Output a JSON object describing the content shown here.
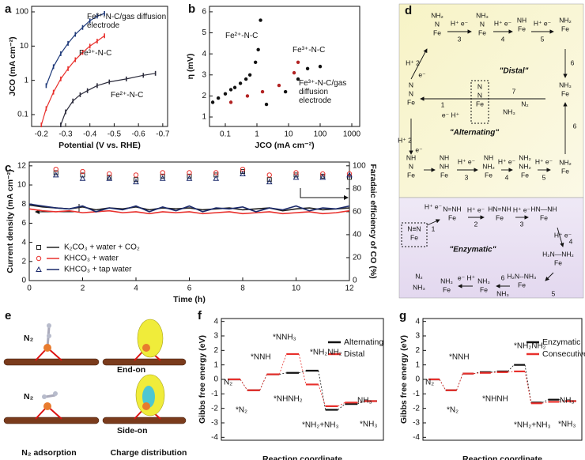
{
  "chart_data": [
    {
      "type": "line",
      "xlabel": "Potential (V vs. RHE)",
      "ylabel": "JCO (mA cm⁻²)",
      "xlim": [
        -0.16,
        -0.72
      ],
      "ylim": [
        0.045,
        145
      ],
      "ylog": true,
      "xticks": [
        -0.2,
        -0.3,
        -0.4,
        -0.5,
        -0.6,
        -0.7
      ],
      "yticks": [
        0.1,
        1,
        10,
        100
      ],
      "series": [
        {
          "name": "Fe³⁺-N-C/gas diffusion electrode",
          "color": "#1f3a7a",
          "x": [
            -0.22,
            -0.25,
            -0.28,
            -0.31,
            -0.34,
            -0.37,
            -0.4,
            -0.43,
            -0.46
          ],
          "values": [
            0.7,
            2.5,
            6,
            12,
            22,
            35,
            55,
            75,
            90
          ]
        },
        {
          "name": "Fe³⁺-N-C",
          "color": "#e8302c",
          "x": [
            -0.2,
            -0.22,
            -0.25,
            -0.28,
            -0.31,
            -0.34,
            -0.37,
            -0.4,
            -0.43,
            -0.46
          ],
          "values": [
            0.05,
            0.15,
            0.45,
            1.1,
            2.2,
            4,
            6.5,
            10,
            14,
            20
          ]
        },
        {
          "name": "Fe²⁺-N-C",
          "color": "#2b2b3b",
          "x": [
            -0.28,
            -0.3,
            -0.33,
            -0.36,
            -0.39,
            -0.43,
            -0.48,
            -0.55,
            -0.62,
            -0.67
          ],
          "values": [
            0.05,
            0.12,
            0.25,
            0.38,
            0.5,
            0.7,
            0.9,
            1.1,
            1.4,
            1.6
          ]
        }
      ]
    },
    {
      "type": "scatter",
      "xlabel": "JCO (mA cm⁻²)",
      "ylabel": "η (mV)",
      "xlim": [
        0.0316,
        1778
      ],
      "xlog": true,
      "ylim": [
        0.55,
        6.26
      ],
      "xticks": [
        0.1,
        1,
        10,
        100,
        1000
      ],
      "yticks": [
        1,
        2,
        3,
        4,
        5,
        6
      ],
      "series": [
        {
          "name": "Fe²⁺-N-C",
          "color": "#111111",
          "x": [
            0.04,
            0.06,
            0.1,
            0.15,
            0.2,
            0.3,
            0.45,
            0.6,
            0.9,
            1.1,
            1.3
          ],
          "values": [
            1.7,
            1.9,
            2.1,
            2.3,
            2.4,
            2.6,
            2.8,
            3.0,
            3.6,
            4.2,
            5.6
          ]
        },
        {
          "name": "Fe³⁺-N-C",
          "color": "#b22222",
          "x": [
            0.15,
            0.5,
            1.5,
            5,
            15,
            20
          ],
          "values": [
            1.7,
            2.0,
            2.2,
            2.5,
            3.1,
            3.6
          ]
        },
        {
          "name": "Fe³⁺-N-C/gas diffusion electrode",
          "color": "#111111",
          "x": [
            2,
            8,
            20,
            40,
            100
          ],
          "values": [
            1.6,
            2.2,
            2.8,
            3.3,
            3.4
          ]
        }
      ]
    },
    {
      "type": "stability",
      "xlabel": "Time (h)",
      "ylabel": "Current density (mA cm⁻²)",
      "y2label": "Faradaic efficiency of CO (%)",
      "xlim": [
        0,
        12
      ],
      "ylim": [
        0,
        12.4
      ],
      "y2lim": [
        0,
        103.3
      ],
      "xticks": [
        0,
        2,
        4,
        6,
        8,
        10,
        12
      ],
      "yticks": [
        0,
        2,
        4,
        6,
        8,
        10,
        12
      ],
      "y2ticks": [
        0,
        20,
        40,
        60,
        80,
        100
      ],
      "x": [
        0,
        0.5,
        1,
        1.5,
        2,
        2.5,
        3,
        3.5,
        4,
        4.5,
        5,
        5.5,
        6,
        6.5,
        7,
        7.5,
        8,
        8.5,
        9,
        9.5,
        10,
        10.5,
        11,
        11.5,
        12
      ],
      "fe_x": [
        1,
        2,
        3,
        4,
        5,
        6,
        7,
        8,
        9,
        10,
        11,
        12
      ],
      "series": [
        {
          "name": "K₂CO₃ + water + CO₂",
          "color": "#222222",
          "marker": "square",
          "values": [
            7.9,
            7.7,
            7.6,
            7.5,
            7.7,
            7.4,
            7.6,
            7.5,
            7.7,
            7.4,
            7.6,
            7.5,
            7.6,
            7.4,
            7.5,
            7.6,
            7.4,
            7.5,
            7.6,
            7.3,
            7.5,
            7.6,
            7.4,
            7.5,
            7.6
          ],
          "fe_values": [
            94,
            92,
            90,
            88,
            91,
            91,
            92,
            95,
            88,
            92,
            91,
            90
          ]
        },
        {
          "name": "KHCO₃ + water",
          "color": "#e8302c",
          "marker": "circle",
          "values": [
            7.5,
            7.3,
            7.2,
            7.3,
            7.1,
            7.2,
            7.3,
            7.1,
            7.2,
            7.0,
            7.2,
            7.1,
            7.2,
            7.0,
            7.1,
            7.2,
            7.0,
            7.1,
            7.2,
            7.0,
            7.1,
            7.2,
            7.0,
            7.1,
            7.3
          ],
          "fe_values": [
            97,
            95,
            93,
            92,
            94,
            94,
            94,
            97,
            92,
            94,
            93,
            93
          ]
        },
        {
          "name": "KHCO₃ + tap water",
          "color": "#1b2a6b",
          "marker": "triangle",
          "values": [
            8.0,
            7.8,
            7.6,
            7.5,
            7.8,
            7.2,
            7.6,
            7.4,
            7.8,
            7.2,
            7.7,
            7.3,
            7.8,
            7.2,
            7.6,
            7.5,
            7.7,
            7.2,
            7.6,
            7.4,
            7.8,
            7.3,
            7.6,
            7.5,
            7.8
          ],
          "fe_values": [
            92,
            89,
            89,
            86,
            89,
            89,
            89,
            93,
            86,
            90,
            90,
            92
          ]
        }
      ]
    },
    {
      "type": "energy",
      "xlabel": "Reaction coordinate",
      "ylabel": "Gibbs free energy (eV)",
      "ylim": [
        -4.2,
        4.2
      ],
      "yticks": [
        -4,
        -3,
        -2,
        -1,
        0,
        1,
        2,
        3,
        4
      ],
      "legend": "upper right",
      "series": [
        {
          "name": "Alternating",
          "color": "#111111",
          "values": [
            0,
            -0.75,
            0.35,
            0.45,
            0.6,
            -2.1,
            -1.7,
            -1.5
          ]
        },
        {
          "name": "Distal",
          "color": "#e8302c",
          "values": [
            0,
            -0.75,
            0.35,
            1.75,
            -0.35,
            -1.85,
            -1.6,
            -1.5
          ]
        }
      ],
      "annotations": [
        "N₂",
        "*NNH",
        "*NNH₃",
        "*NH₂NH₂",
        "*N₂",
        "*NHNH₂",
        "NH₃",
        "*NH₂+NH₃",
        "*NH₃"
      ]
    },
    {
      "type": "energy",
      "xlabel": "Reaction coordinate",
      "ylabel": "Gibbs free energy (eV)",
      "ylim": [
        -4.2,
        4.2
      ],
      "yticks": [
        -4,
        -3,
        -2,
        -1,
        0,
        1,
        2,
        3,
        4
      ],
      "legend": "upper right",
      "series": [
        {
          "name": "Enzymatic",
          "color": "#111111",
          "values": [
            0,
            -0.75,
            0.4,
            0.5,
            0.55,
            1.0,
            -1.6,
            -1.4,
            -1.5
          ]
        },
        {
          "name": "Consecutive",
          "color": "#e8302c",
          "values": [
            0,
            -0.75,
            0.4,
            0.45,
            0.5,
            0.55,
            -1.65,
            -1.55,
            -1.5
          ]
        }
      ],
      "annotations": [
        "N₂",
        "*NNH",
        "*NH₂NH₂",
        "*N₂",
        "*NHNH",
        "NH₃",
        "*NH₂+NH₃",
        "*NH₃"
      ]
    }
  ],
  "panel_labels": [
    "a",
    "b",
    "c",
    "d",
    "e",
    "f",
    "g"
  ],
  "mechanism": {
    "pathways": [
      "\"Distal\"",
      "\"Alternating\"",
      "\"Enzymatic\""
    ],
    "molecules": [
      [
        "NH₂",
        "N",
        "Fe"
      ],
      [
        "NH₃",
        "N",
        "Fe"
      ],
      [
        "NH",
        "Fe"
      ],
      [
        "NH₂",
        "Fe"
      ],
      [
        "NH₃",
        "Fe"
      ],
      [
        "N",
        "N",
        "Fe"
      ],
      [
        "N",
        "N",
        "Fe"
      ],
      [
        "NH",
        "N",
        "Fe"
      ],
      [
        "NH",
        "NH",
        "Fe"
      ],
      [
        "NH",
        "NH₂",
        "Fe"
      ],
      [
        "NH₂",
        "NH₂",
        "Fe"
      ],
      [
        "NH₂",
        "Fe"
      ],
      [
        "N≡N",
        "Fe"
      ],
      [
        "N=NH",
        "Fe"
      ],
      [
        "HN=NH",
        "Fe"
      ],
      [
        "HN—NH",
        "Fe"
      ],
      [
        "H₂N—NH₂",
        "Fe"
      ],
      [
        "H₂N--NH₃",
        "Fe"
      ],
      [
        "NH₃",
        "Fe"
      ],
      [
        "NH₃",
        "Fe"
      ]
    ],
    "arrow_labels": [
      "H⁺ e⁻",
      "3",
      "H⁺ e⁻",
      "4",
      "H⁺ e⁻",
      "5",
      "6",
      "N₂",
      "7",
      "NH₃",
      "1",
      "e⁻ H⁺",
      "H⁺ 2",
      "e⁻",
      "H⁺ e⁻",
      "3",
      "H⁺ e⁻",
      "4",
      "H⁺ e⁻",
      "5",
      "6",
      "H⁺ 2",
      "e⁻",
      "H⁺ e⁻",
      "1",
      "H⁺ e⁻",
      "2",
      "H⁺ e⁻",
      "3",
      "H⁺ e⁻",
      "4",
      "5",
      "NH₃",
      "6",
      "e⁻ H⁺",
      "N₂",
      "NH₃"
    ]
  },
  "adsorption": {
    "labels": [
      "N₂",
      "End-on",
      "N₂",
      "Side-on"
    ],
    "captions": [
      "N₂ adsorption",
      "Charge distribution"
    ]
  }
}
